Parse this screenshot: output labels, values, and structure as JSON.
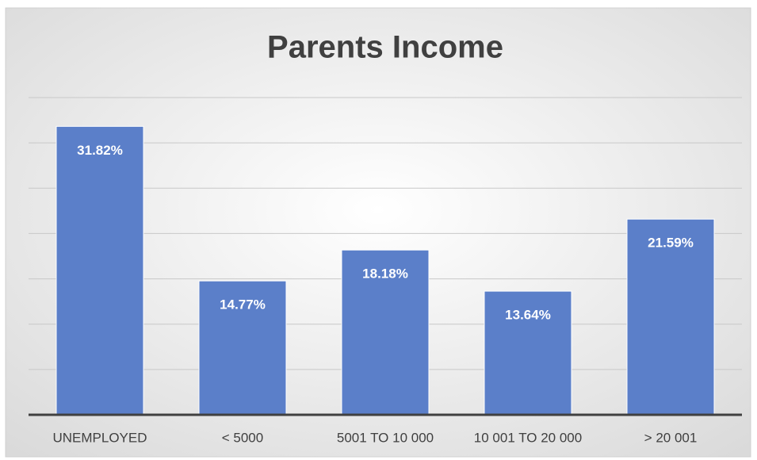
{
  "chart_data": {
    "type": "bar",
    "title": "Parents Income",
    "categories": [
      "UNEMPLOYED",
      "< 5000",
      "5001 TO 10 000",
      "10 001 TO 20 000",
      "> 20 001"
    ],
    "values": [
      31.82,
      14.77,
      18.18,
      13.64,
      21.59
    ],
    "value_labels": [
      "31.82%",
      "14.77%",
      "18.18%",
      "13.64%",
      "21.59%"
    ],
    "color": "#5b7fc9",
    "ylim": [
      0,
      35
    ],
    "yticks": [
      0,
      5,
      10,
      15,
      20,
      25,
      30,
      35
    ],
    "grid": true
  }
}
